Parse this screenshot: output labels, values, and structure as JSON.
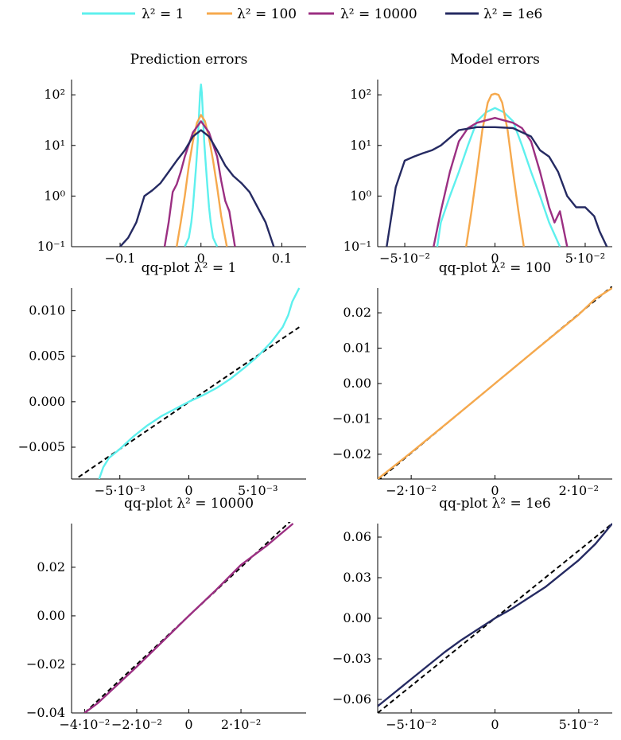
{
  "legend": [
    {
      "label": "λ² = 1",
      "color": "#5ef0ee"
    },
    {
      "label": "λ² = 100",
      "color": "#f6a94d"
    },
    {
      "label": "λ² = 10000",
      "color": "#9b2f82"
    },
    {
      "label": "λ² = 1e6",
      "color": "#252a62"
    }
  ],
  "chart_data": [
    {
      "type": "line",
      "title": "Prediction errors",
      "y_scale": "log",
      "xlim": [
        -0.16,
        0.13
      ],
      "ylim": [
        0.1,
        200
      ],
      "xticks": [
        -0.1,
        0,
        0.1
      ],
      "xtick_labels": [
        "−0.1",
        "0",
        "0.1"
      ],
      "yticks": [
        0.1,
        1,
        10,
        100
      ],
      "ytick_labels": [
        "10⁻¹",
        "10⁰",
        "10¹",
        "10²"
      ],
      "series": [
        {
          "name": "λ² = 1",
          "color": "#5ef0ee",
          "x": [
            -0.02,
            -0.015,
            -0.012,
            -0.01,
            -0.008,
            -0.006,
            -0.004,
            -0.003,
            -0.002,
            -0.001,
            0,
            0.001,
            0.002,
            0.003,
            0.004,
            0.006,
            0.008,
            0.01,
            0.012,
            0.015,
            0.02
          ],
          "y": [
            0.1,
            0.15,
            0.3,
            0.6,
            1.5,
            4,
            12,
            25,
            55,
            110,
            160,
            110,
            55,
            25,
            12,
            4,
            1.5,
            0.6,
            0.3,
            0.15,
            0.1
          ]
        },
        {
          "name": "λ² = 100",
          "color": "#f6a94d",
          "x": [
            -0.03,
            -0.025,
            -0.02,
            -0.015,
            -0.01,
            -0.005,
            0,
            0.005,
            0.01,
            0.015,
            0.02,
            0.025,
            0.032
          ],
          "y": [
            0.1,
            0.3,
            1,
            4,
            12,
            28,
            40,
            30,
            14,
            5,
            1.5,
            0.4,
            0.1
          ]
        },
        {
          "name": "λ² = 10000",
          "color": "#9b2f82",
          "x": [
            -0.045,
            -0.04,
            -0.035,
            -0.03,
            -0.025,
            -0.02,
            -0.01,
            0,
            0.01,
            0.02,
            0.025,
            0.03,
            0.035,
            0.042
          ],
          "y": [
            0.1,
            0.3,
            1.2,
            1.7,
            3,
            6,
            18,
            30,
            18,
            6,
            2,
            0.8,
            0.5,
            0.1
          ]
        },
        {
          "name": "λ² = 1e6",
          "color": "#252a62",
          "x": [
            -0.1,
            -0.09,
            -0.08,
            -0.07,
            -0.06,
            -0.05,
            -0.04,
            -0.03,
            -0.02,
            -0.01,
            0,
            0.01,
            0.02,
            0.03,
            0.04,
            0.05,
            0.06,
            0.07,
            0.08,
            0.09
          ],
          "y": [
            0.1,
            0.15,
            0.3,
            1,
            1.3,
            1.8,
            3,
            5,
            8,
            15,
            20,
            15,
            8,
            4,
            2.5,
            1.8,
            1.2,
            0.6,
            0.3,
            0.1
          ]
        }
      ]
    },
    {
      "type": "line",
      "title": "Model errors",
      "y_scale": "log",
      "xlim": [
        -0.065,
        0.065
      ],
      "ylim": [
        0.1,
        200
      ],
      "xticks": [
        -0.05,
        0,
        0.05
      ],
      "xtick_labels": [
        "−5·10⁻²",
        "0",
        "5·10⁻²"
      ],
      "yticks": [
        0.1,
        1,
        10,
        100
      ],
      "ytick_labels": [
        "10⁻¹",
        "10⁰",
        "10¹",
        "10²"
      ],
      "series": [
        {
          "name": "λ² = 1",
          "color": "#5ef0ee",
          "x": [
            -0.032,
            -0.03,
            -0.025,
            -0.02,
            -0.015,
            -0.01,
            -0.005,
            0,
            0.005,
            0.01,
            0.015,
            0.02,
            0.025,
            0.03,
            0.036
          ],
          "y": [
            0.1,
            0.3,
            1,
            3,
            10,
            30,
            45,
            55,
            45,
            30,
            10,
            3,
            1,
            0.3,
            0.1
          ]
        },
        {
          "name": "λ² = 100",
          "color": "#f6a94d",
          "x": [
            -0.016,
            -0.013,
            -0.01,
            -0.007,
            -0.004,
            -0.002,
            0,
            0.002,
            0.004,
            0.007,
            0.01,
            0.013,
            0.016
          ],
          "y": [
            0.1,
            0.5,
            3,
            20,
            70,
            100,
            105,
            100,
            70,
            20,
            3,
            0.5,
            0.1
          ]
        },
        {
          "name": "λ² = 10000",
          "color": "#9b2f82",
          "x": [
            -0.034,
            -0.03,
            -0.025,
            -0.02,
            -0.015,
            -0.01,
            0,
            0.01,
            0.015,
            0.02,
            0.025,
            0.03,
            0.033,
            0.036,
            0.04
          ],
          "y": [
            0.1,
            0.5,
            3,
            12,
            22,
            28,
            35,
            28,
            22,
            12,
            3,
            0.6,
            0.3,
            0.5,
            0.1
          ]
        },
        {
          "name": "λ² = 1e6",
          "color": "#252a62",
          "x": [
            -0.06,
            -0.057,
            -0.055,
            -0.05,
            -0.045,
            -0.04,
            -0.035,
            -0.03,
            -0.02,
            -0.01,
            0,
            0.01,
            0.02,
            0.025,
            0.03,
            0.035,
            0.04,
            0.045,
            0.05,
            0.055,
            0.058,
            0.062
          ],
          "y": [
            0.1,
            0.5,
            1.5,
            5,
            6,
            7,
            8,
            10,
            20,
            23,
            23,
            22,
            15,
            8,
            6,
            3,
            1,
            0.6,
            0.6,
            0.4,
            0.2,
            0.1
          ]
        }
      ]
    },
    {
      "type": "line",
      "title": "qq-plot λ² = 1",
      "xlim": [
        -0.0085,
        0.0085
      ],
      "ylim": [
        -0.0085,
        0.0125
      ],
      "xticks": [
        -0.005,
        0,
        0.005
      ],
      "xtick_labels": [
        "−5·10⁻³",
        "0",
        "5·10⁻³"
      ],
      "yticks": [
        -0.005,
        0,
        0.005,
        0.01
      ],
      "ytick_labels": [
        "−0.005",
        "0.000",
        "0.005",
        "0.010"
      ],
      "reference_line": {
        "x": [
          -0.008,
          0.008
        ],
        "y": [
          -0.0083,
          0.0082
        ]
      },
      "series": [
        {
          "name": "λ² = 1",
          "color": "#5ef0ee",
          "x": [
            -0.0065,
            -0.0062,
            -0.0058,
            -0.005,
            -0.004,
            -0.003,
            -0.002,
            -0.001,
            0,
            0.001,
            0.002,
            0.003,
            0.004,
            0.005,
            0.006,
            0.0068,
            0.0072,
            0.0075,
            0.008
          ],
          "y": [
            -0.0085,
            -0.0072,
            -0.0062,
            -0.0052,
            -0.0038,
            -0.0026,
            -0.0016,
            -0.0008,
            0,
            0.0007,
            0.0015,
            0.0025,
            0.0037,
            0.005,
            0.0066,
            0.0082,
            0.0095,
            0.011,
            0.0125
          ]
        }
      ]
    },
    {
      "type": "line",
      "title": "qq-plot λ² = 100",
      "xlim": [
        -0.028,
        0.028
      ],
      "ylim": [
        -0.027,
        0.027
      ],
      "xticks": [
        -0.02,
        0,
        0.02
      ],
      "xtick_labels": [
        "−2·10⁻²",
        "0",
        "2·10⁻²"
      ],
      "yticks": [
        -0.02,
        -0.01,
        0,
        0.01,
        0.02
      ],
      "ytick_labels": [
        "−0.02",
        "−0.01",
        "0.00",
        "0.01",
        "0.02"
      ],
      "reference_line": {
        "x": [
          -0.028,
          0.028
        ],
        "y": [
          -0.0275,
          0.0275
        ]
      },
      "series": [
        {
          "name": "λ² = 100",
          "color": "#f6a94d",
          "x": [
            -0.028,
            -0.02,
            -0.01,
            0,
            0.01,
            0.02,
            0.024,
            0.028
          ],
          "y": [
            -0.027,
            -0.0195,
            -0.0098,
            0,
            0.0098,
            0.0195,
            0.024,
            0.027
          ]
        }
      ]
    },
    {
      "type": "line",
      "title": "qq-plot λ² = 10000",
      "xlim": [
        -0.045,
        0.045
      ],
      "ylim": [
        -0.04,
        0.038
      ],
      "xticks": [
        -0.04,
        -0.02,
        0,
        0.02
      ],
      "xtick_labels": [
        "−4·10⁻²",
        "−2·10⁻²",
        "0",
        "2·10⁻²"
      ],
      "yticks": [
        -0.04,
        -0.02,
        0,
        0.02
      ],
      "ytick_labels": [
        "−0.04",
        "−0.02",
        "0.00",
        "0.02"
      ],
      "reference_line": {
        "x": [
          -0.04,
          0.04
        ],
        "y": [
          -0.04,
          0.04
        ]
      },
      "series": [
        {
          "name": "λ² = 10000",
          "color": "#9b2f82",
          "x": [
            -0.04,
            -0.035,
            -0.03,
            -0.02,
            -0.01,
            0,
            0.01,
            0.02,
            0.03,
            0.04
          ],
          "y": [
            -0.04,
            -0.036,
            -0.031,
            -0.021,
            -0.0105,
            0,
            0.0102,
            0.021,
            0.029,
            0.038
          ]
        }
      ]
    },
    {
      "type": "line",
      "title": "qq-plot λ² = 1e6",
      "xlim": [
        -0.07,
        0.07
      ],
      "ylim": [
        -0.07,
        0.07
      ],
      "xticks": [
        -0.05,
        0,
        0.05
      ],
      "xtick_labels": [
        "−5·10⁻²",
        "0",
        "5·10⁻²"
      ],
      "yticks": [
        -0.06,
        -0.03,
        0,
        0.03,
        0.06
      ],
      "ytick_labels": [
        "−0.06",
        "−0.03",
        "0.00",
        "0.03",
        "0.06"
      ],
      "reference_line": {
        "x": [
          -0.07,
          0.07
        ],
        "y": [
          -0.07,
          0.07
        ]
      },
      "series": [
        {
          "name": "λ² = 1e6",
          "color": "#252a62",
          "x": [
            -0.07,
            -0.06,
            -0.05,
            -0.04,
            -0.03,
            -0.02,
            -0.01,
            0,
            0.01,
            0.02,
            0.03,
            0.04,
            0.05,
            0.06,
            0.07
          ],
          "y": [
            -0.065,
            -0.055,
            -0.045,
            -0.035,
            -0.025,
            -0.016,
            -0.008,
            0,
            0.007,
            0.015,
            0.023,
            0.033,
            0.043,
            0.055,
            0.07
          ]
        }
      ]
    }
  ]
}
